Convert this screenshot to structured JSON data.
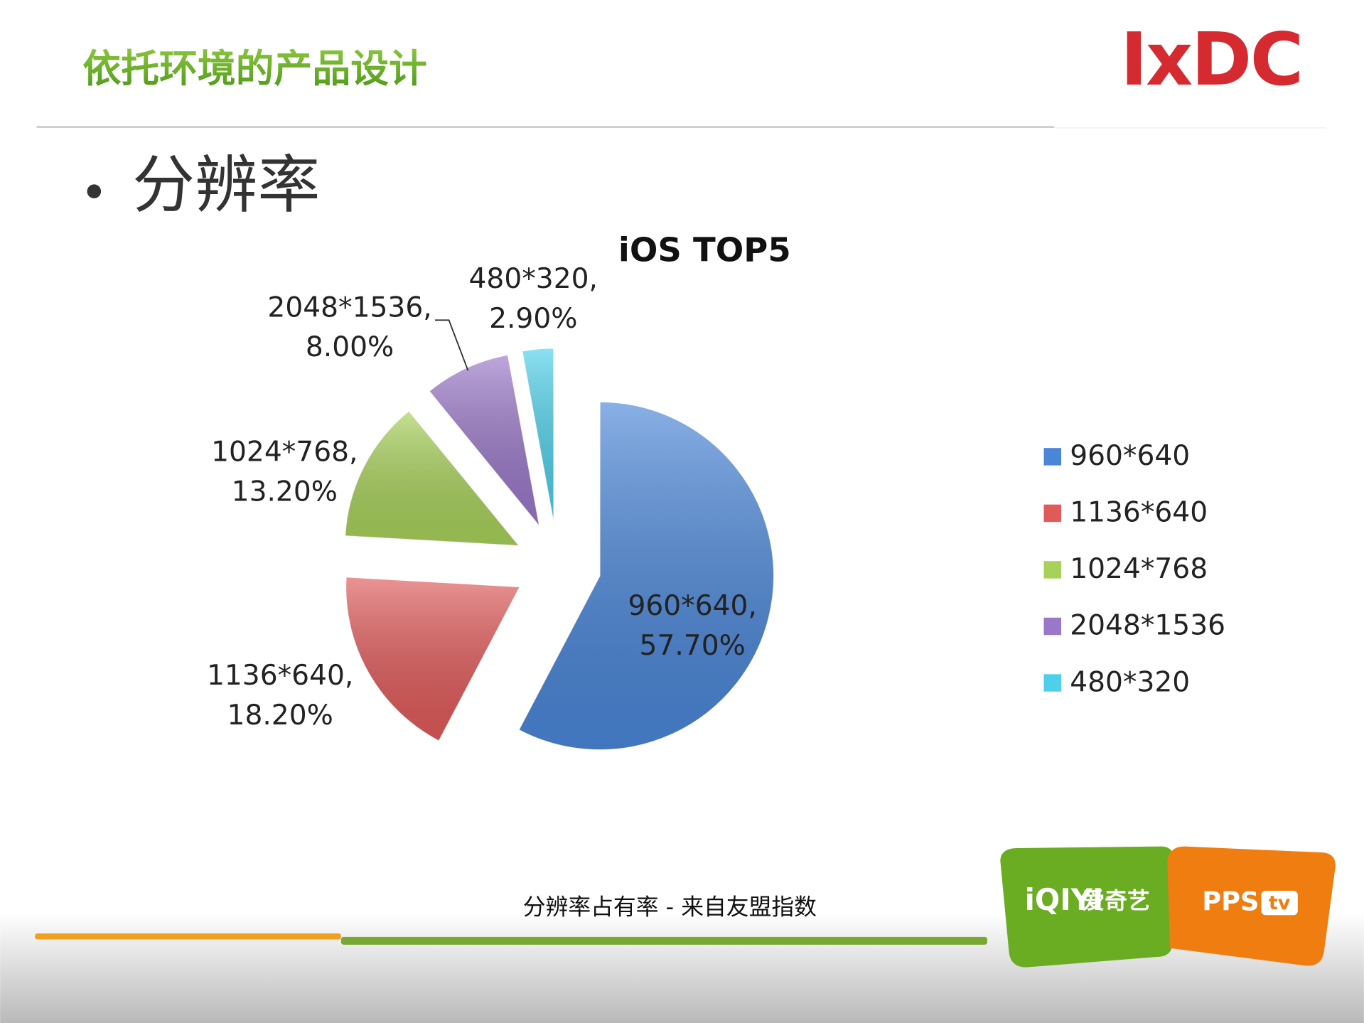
{
  "header": {
    "title": "依托环境的产品设计",
    "logo": "IxDC"
  },
  "bullet": "分辨率",
  "chart_data": {
    "type": "pie",
    "title": "iOS  TOP5",
    "categories": [
      "960*640",
      "1136*640",
      "1024*768",
      "2048*1536",
      "480*320"
    ],
    "values": [
      57.7,
      18.2,
      13.2,
      8.0,
      2.9
    ],
    "value_labels": [
      "57.70%",
      "18.20%",
      "13.20%",
      "8.00%",
      "2.90%"
    ],
    "label_separator": ",",
    "colors": [
      "#4a86d8",
      "#e05a5a",
      "#a8d15a",
      "#9a78c8",
      "#4fd0ea"
    ],
    "legend": "right"
  },
  "footer": {
    "caption": "分辨率占有率 - 来自友盟指数",
    "brand1_logo": "iQIYI",
    "brand1_name": "爱奇艺",
    "brand2_logo": "PPS",
    "brand2_tag": "tv"
  }
}
